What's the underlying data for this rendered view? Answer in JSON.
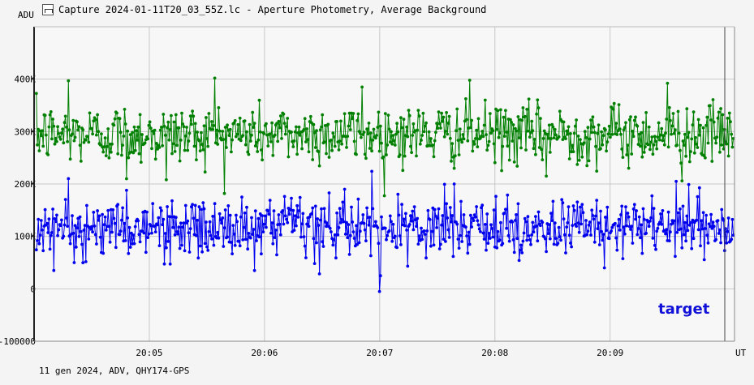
{
  "window": {
    "title": "Capture 2024-01-11T20_03_55Z.lc - Aperture Photometry, Average Background",
    "icon": "light-curve-icon"
  },
  "footer": {
    "info": "11 gen 2024, ADV, QHY174-GPS"
  },
  "chart_data": {
    "type": "line",
    "ylabel": "ADU",
    "xlabel": "UT",
    "ylim": [
      -100000,
      500000
    ],
    "xlim_minutes": [
      4.0,
      10.08
    ],
    "yticks": [
      {
        "value": 400000,
        "label": "400K"
      },
      {
        "value": 300000,
        "label": "300K"
      },
      {
        "value": 200000,
        "label": "200K"
      },
      {
        "value": 100000,
        "label": "100K"
      },
      {
        "value": 0,
        "label": "0"
      },
      {
        "value": -100000,
        "label": "-100000"
      }
    ],
    "xticks": [
      {
        "value": 5,
        "label": "20:05"
      },
      {
        "value": 6,
        "label": "20:06"
      },
      {
        "value": 7,
        "label": "20:07"
      },
      {
        "value": 8,
        "label": "20:08"
      },
      {
        "value": 9,
        "label": "20:09"
      }
    ],
    "grid": true,
    "annotation": "target",
    "series": [
      {
        "color": "#008000",
        "mean": 295000,
        "spread": 28000,
        "extremes": [
          {
            "t": 4.3,
            "y": 397000
          },
          {
            "t": 5.57,
            "y": 402000
          },
          {
            "t": 7.78,
            "y": 398000
          },
          {
            "t": 9.5,
            "y": 392000
          },
          {
            "t": 6.85,
            "y": 385000
          },
          {
            "t": 5.15,
            "y": 208000
          },
          {
            "t": 4.8,
            "y": 210000
          },
          {
            "t": 9.62,
            "y": 206000
          },
          {
            "t": 8.45,
            "y": 215000
          }
        ]
      },
      {
        "color": "#0000ee",
        "mean": 115000,
        "spread": 27000,
        "extremes": [
          {
            "t": 7.0,
            "y": -5000
          },
          {
            "t": 7.01,
            "y": 25000
          },
          {
            "t": 7.65,
            "y": 200000
          },
          {
            "t": 9.57,
            "y": 205000
          },
          {
            "t": 4.8,
            "y": 188000
          },
          {
            "t": 6.7,
            "y": 190000
          },
          {
            "t": 4.35,
            "y": 50000
          },
          {
            "t": 4.17,
            "y": 35000
          },
          {
            "t": 8.95,
            "y": 40000
          }
        ]
      }
    ]
  }
}
